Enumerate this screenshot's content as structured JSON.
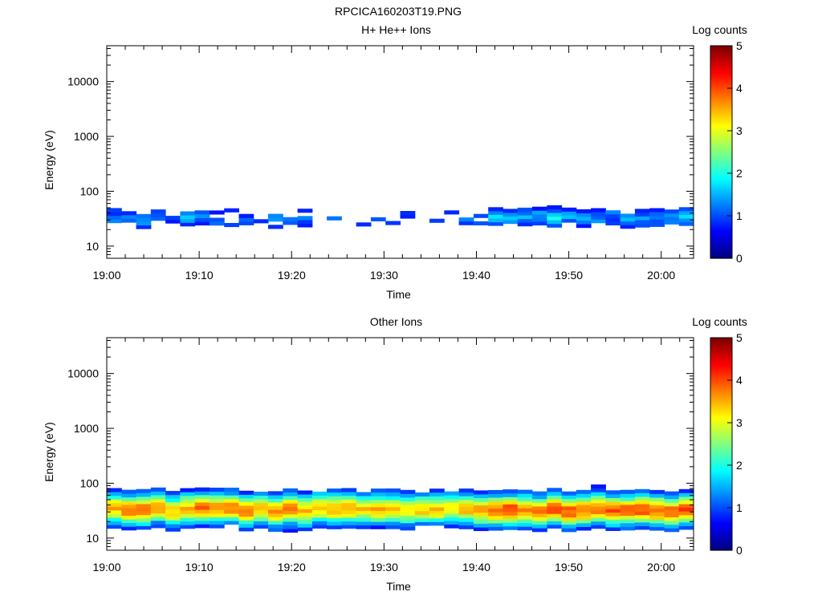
{
  "page": {
    "title": "RPCICA160203T19.PNG"
  },
  "chart_data": [
    {
      "type": "heatmap",
      "title": "H+ He++ Ions",
      "xlabel": "Time",
      "ylabel": "Energy (eV)",
      "x_tick_labels": [
        "19:00",
        "19:10",
        "19:20",
        "19:30",
        "19:40",
        "19:50",
        "20:00"
      ],
      "x_range_minutes": [
        0,
        63.5
      ],
      "y_scale": "log",
      "y_range": [
        6,
        45000
      ],
      "y_tick_labels": [
        "10",
        "100",
        "1000",
        "10000"
      ],
      "colorbar": {
        "label": "Log counts",
        "range": [
          0,
          5
        ],
        "tick_labels": [
          "0",
          "1",
          "2",
          "3",
          "4",
          "5"
        ]
      },
      "band_profile": {
        "center_ev": 33,
        "spread_dex": 0.13,
        "peak_log_counts": [
          1.2,
          1.1,
          1.3,
          1.2,
          1.0,
          1.4,
          1.3,
          1.2,
          1.3,
          1.1,
          1.0,
          1.3,
          1.2,
          1.2,
          1.1,
          1.0,
          1.2,
          1.0,
          1.1,
          1.0,
          1.0,
          1.0,
          1.1,
          1.0,
          1.2,
          1.3,
          1.6,
          1.4,
          1.5,
          1.4,
          1.8,
          1.4,
          1.3,
          1.3,
          1.2,
          1.3,
          1.3,
          1.4,
          1.3,
          1.5
        ],
        "presence": [
          1,
          0.7,
          0.8,
          0.7,
          0.5,
          0.9,
          0.8,
          0.7,
          0.4,
          0.6,
          0.2,
          0.7,
          0.6,
          0.8,
          0.6,
          0.6,
          0.6,
          0.5,
          0.4,
          0.5,
          0.4,
          0.5,
          0.3,
          0.3,
          0.6,
          0.8,
          0.9,
          0.9,
          0.9,
          1,
          1,
          1,
          1,
          1,
          1,
          1,
          1,
          1,
          1,
          1
        ]
      }
    },
    {
      "type": "heatmap",
      "title": "Other Ions",
      "xlabel": "Time",
      "ylabel": "Energy (eV)",
      "x_tick_labels": [
        "19:00",
        "19:10",
        "19:20",
        "19:30",
        "19:40",
        "19:50",
        "20:00"
      ],
      "x_range_minutes": [
        0,
        63.5
      ],
      "y_scale": "log",
      "y_range": [
        6,
        45000
      ],
      "y_tick_labels": [
        "10",
        "100",
        "1000",
        "10000"
      ],
      "colorbar": {
        "label": "Log counts",
        "range": [
          0,
          5
        ],
        "tick_labels": [
          "0",
          "1",
          "2",
          "3",
          "4",
          "5"
        ]
      },
      "band_profile": {
        "center_ev": 33,
        "spread_dex": 0.2,
        "peak_log_counts": [
          3.5,
          3.8,
          3.9,
          3.5,
          3.4,
          3.5,
          3.9,
          3.7,
          3.8,
          3.7,
          3.5,
          3.8,
          3.9,
          3.5,
          3.4,
          3.6,
          3.5,
          3.4,
          3.5,
          3.3,
          3.3,
          3.4,
          3.4,
          3.3,
          3.5,
          3.6,
          3.9,
          4.0,
          3.8,
          3.9,
          4.1,
          4.0,
          3.9,
          3.8,
          3.9,
          3.9,
          4.0,
          4.0,
          3.9,
          4.0
        ],
        "presence": [
          1,
          1,
          1,
          1,
          1,
          1,
          1,
          1,
          1,
          1,
          1,
          1,
          1,
          1,
          1,
          1,
          1,
          1,
          1,
          1,
          1,
          1,
          1,
          1,
          1,
          1,
          1,
          1,
          1,
          1,
          1,
          1,
          1,
          1,
          1,
          1,
          1,
          1,
          1,
          1
        ]
      }
    }
  ]
}
